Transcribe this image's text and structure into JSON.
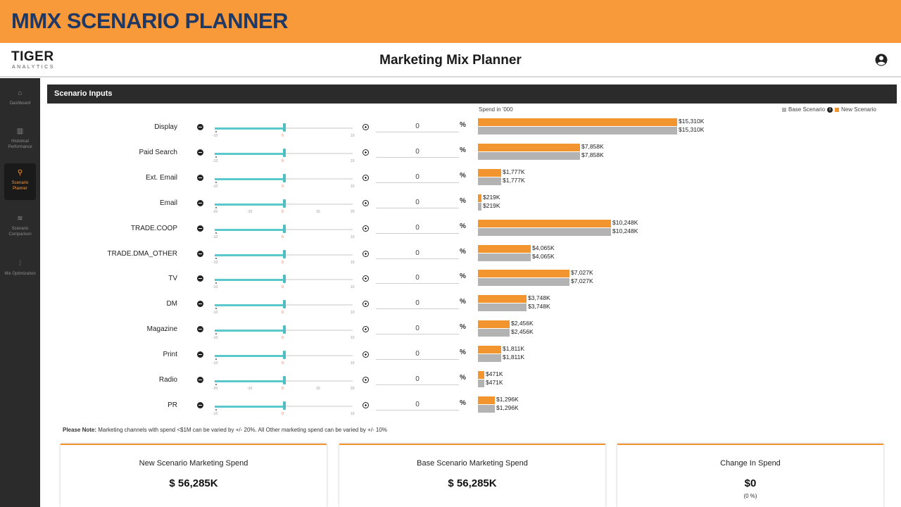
{
  "banner": {
    "title": "MMX SCENARIO PLANNER"
  },
  "app": {
    "logo_main": "TIGER",
    "logo_sub": "ANALYTICS",
    "title": "Marketing Mix Planner",
    "user_icon": "user-circle-icon"
  },
  "sidebar": {
    "items": [
      {
        "label": "Dashboard",
        "icon": "home-icon",
        "active": false
      },
      {
        "label": "Historical Performance",
        "icon": "bar-chart-icon",
        "active": false
      },
      {
        "label": "Scenario Planner",
        "icon": "search-icon",
        "active": true
      },
      {
        "label": "Scenario Comparison",
        "icon": "layers-icon",
        "active": false
      },
      {
        "label": "Mix Optimization",
        "icon": "sliders-icon",
        "active": false
      }
    ]
  },
  "panel": {
    "title": "Scenario Inputs"
  },
  "spend_caption": "Spend in '000",
  "legend": {
    "base": "Base Scenario",
    "new": "New Scenario",
    "base_color": "#b3b3b3",
    "new_color": "#f2952f"
  },
  "pct_symbol": "%",
  "channels": [
    {
      "name": "Display",
      "value": "0",
      "range": 10,
      "ticks": [
        "-10",
        "0",
        "10"
      ],
      "new_spend": 15310,
      "base_spend": 15310,
      "new_label": "$15,310K",
      "base_label": "$15,310K"
    },
    {
      "name": "Paid Search",
      "value": "0",
      "range": 10,
      "ticks": [
        "-10",
        "0",
        "10"
      ],
      "new_spend": 7858,
      "base_spend": 7858,
      "new_label": "$7,858K",
      "base_label": "$7,858K"
    },
    {
      "name": "Ext. Email",
      "value": "0",
      "range": 10,
      "ticks": [
        "-10",
        "0",
        "10"
      ],
      "new_spend": 1777,
      "base_spend": 1777,
      "new_label": "$1,777K",
      "base_label": "$1,777K"
    },
    {
      "name": "Email",
      "value": "0",
      "range": 20,
      "ticks": [
        "-20",
        "-10",
        "0",
        "10",
        "20"
      ],
      "new_spend": 219,
      "base_spend": 219,
      "new_label": "$219K",
      "base_label": "$219K"
    },
    {
      "name": "TRADE.COOP",
      "value": "0",
      "range": 10,
      "ticks": [
        "-10",
        "0",
        "10"
      ],
      "new_spend": 10248,
      "base_spend": 10248,
      "new_label": "$10,248K",
      "base_label": "$10,248K"
    },
    {
      "name": "TRADE.DMA_OTHER",
      "value": "0",
      "range": 10,
      "ticks": [
        "-10",
        "0",
        "10"
      ],
      "new_spend": 4065,
      "base_spend": 4065,
      "new_label": "$4,065K",
      "base_label": "$4,065K"
    },
    {
      "name": "TV",
      "value": "0",
      "range": 10,
      "ticks": [
        "-10",
        "0",
        "10"
      ],
      "new_spend": 7027,
      "base_spend": 7027,
      "new_label": "$7,027K",
      "base_label": "$7,027K"
    },
    {
      "name": "DM",
      "value": "0",
      "range": 10,
      "ticks": [
        "-10",
        "0",
        "10"
      ],
      "new_spend": 3748,
      "base_spend": 3748,
      "new_label": "$3,748K",
      "base_label": "$3,748K"
    },
    {
      "name": "Magazine",
      "value": "0",
      "range": 10,
      "ticks": [
        "-10",
        "0",
        "10"
      ],
      "new_spend": 2456,
      "base_spend": 2456,
      "new_label": "$2,456K",
      "base_label": "$2,456K"
    },
    {
      "name": "Print",
      "value": "0",
      "range": 10,
      "ticks": [
        "-10",
        "0",
        "10"
      ],
      "new_spend": 1811,
      "base_spend": 1811,
      "new_label": "$1,811K",
      "base_label": "$1,811K"
    },
    {
      "name": "Radio",
      "value": "0",
      "range": 20,
      "ticks": [
        "-20",
        "-10",
        "0",
        "10",
        "20"
      ],
      "new_spend": 471,
      "base_spend": 471,
      "new_label": "$471K",
      "base_label": "$471K"
    },
    {
      "name": "PR",
      "value": "0",
      "range": 10,
      "ticks": [
        "-10",
        "0",
        "10"
      ],
      "new_spend": 1296,
      "base_spend": 1296,
      "new_label": "$1,296K",
      "base_label": "$1,296K"
    }
  ],
  "note": {
    "prefix": "Please Note:",
    "text": "Marketing channels with spend <$1M can be varied by +/- 20%. All Other marketing spend can be varied by +/- 10%"
  },
  "cards": [
    {
      "title": "New Scenario Marketing Spend",
      "value": "$ 56,285K",
      "sub": ""
    },
    {
      "title": "Base Scenario Marketing Spend",
      "value": "$ 56,285K",
      "sub": ""
    },
    {
      "title": "Change In Spend",
      "value": "$0",
      "sub": "(0 %)"
    }
  ],
  "chart_data": {
    "type": "bar",
    "orientation": "horizontal",
    "title": "",
    "xlabel": "Spend in '000",
    "categories": [
      "Display",
      "Paid Search",
      "Ext. Email",
      "Email",
      "TRADE.COOP",
      "TRADE.DMA_OTHER",
      "TV",
      "DM",
      "Magazine",
      "Print",
      "Radio",
      "PR"
    ],
    "series": [
      {
        "name": "New Scenario",
        "values": [
          15310,
          7858,
          1777,
          219,
          10248,
          4065,
          7027,
          3748,
          2456,
          1811,
          471,
          1296
        ]
      },
      {
        "name": "Base Scenario",
        "values": [
          15310,
          7858,
          1777,
          219,
          10248,
          4065,
          7027,
          3748,
          2456,
          1811,
          471,
          1296
        ]
      }
    ],
    "legend_position": "top-right"
  }
}
